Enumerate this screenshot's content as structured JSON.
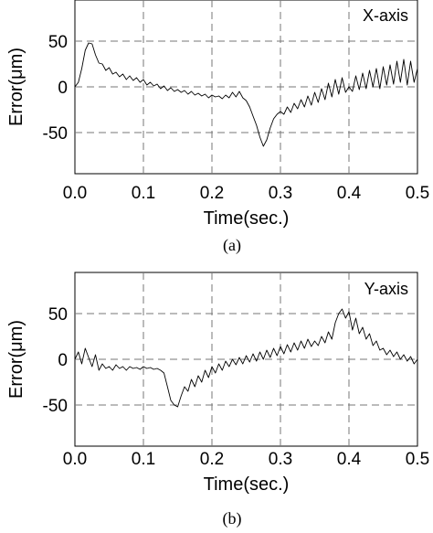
{
  "chart_data": [
    {
      "type": "line",
      "panel_label": "X-axis",
      "caption": "(a)",
      "xlabel": "Time(sec.)",
      "ylabel": "Error(μm)",
      "xlim": [
        0,
        0.5
      ],
      "ylim": [
        -95,
        95
      ],
      "xticks": [
        "0.0",
        "0.1",
        "0.2",
        "0.3",
        "0.4",
        "0.5"
      ],
      "yticks": [
        "50",
        "0",
        "-50"
      ],
      "grid": true,
      "series": [
        {
          "x": [
            0.0,
            0.005,
            0.01,
            0.015,
            0.02,
            0.025,
            0.03,
            0.035,
            0.04,
            0.045,
            0.05,
            0.055,
            0.06,
            0.065,
            0.07,
            0.075,
            0.08,
            0.085,
            0.09,
            0.095,
            0.1,
            0.105,
            0.11,
            0.115,
            0.12,
            0.125,
            0.13,
            0.135,
            0.14,
            0.145,
            0.15,
            0.155,
            0.16,
            0.165,
            0.17,
            0.175,
            0.18,
            0.185,
            0.19,
            0.195,
            0.2,
            0.205,
            0.21,
            0.215,
            0.22,
            0.225,
            0.23,
            0.235,
            0.24,
            0.245,
            0.25,
            0.255,
            0.26,
            0.265,
            0.27,
            0.275,
            0.28,
            0.285,
            0.29,
            0.295,
            0.3,
            0.305,
            0.31,
            0.315,
            0.32,
            0.325,
            0.33,
            0.335,
            0.34,
            0.345,
            0.35,
            0.355,
            0.36,
            0.365,
            0.37,
            0.375,
            0.38,
            0.385,
            0.39,
            0.395,
            0.4,
            0.405,
            0.41,
            0.415,
            0.42,
            0.425,
            0.43,
            0.435,
            0.44,
            0.445,
            0.45,
            0.455,
            0.46,
            0.465,
            0.47,
            0.475,
            0.48,
            0.485,
            0.49,
            0.495,
            0.5
          ],
          "y": [
            0,
            5,
            20,
            40,
            48,
            47,
            35,
            26,
            25,
            18,
            21,
            14,
            16,
            11,
            14,
            8,
            12,
            7,
            10,
            5,
            8,
            2,
            5,
            1,
            3,
            -2,
            1,
            -4,
            -1,
            -5,
            -3,
            -6,
            -4,
            -8,
            -5,
            -9,
            -7,
            -10,
            -8,
            -12,
            -9,
            -11,
            -10,
            -13,
            -9,
            -12,
            -6,
            -11,
            -5,
            -12,
            -15,
            -22,
            -32,
            -42,
            -55,
            -65,
            -58,
            -45,
            -35,
            -30,
            -27,
            -30,
            -22,
            -28,
            -18,
            -24,
            -14,
            -22,
            -10,
            -20,
            -6,
            -17,
            -2,
            -14,
            4,
            -11,
            8,
            -8,
            10,
            -6,
            0,
            -5,
            12,
            -3,
            15,
            -2,
            18,
            0,
            20,
            -2,
            22,
            2,
            24,
            3,
            28,
            5,
            30,
            2,
            28,
            5,
            20
          ]
        }
      ]
    },
    {
      "type": "line",
      "panel_label": "Y-axis",
      "caption": "(b)",
      "xlabel": "Time(sec.)",
      "ylabel": "Error(μm)",
      "xlim": [
        0,
        0.5
      ],
      "ylim": [
        -95,
        95
      ],
      "xticks": [
        "0.0",
        "0.1",
        "0.2",
        "0.3",
        "0.4",
        "0.5"
      ],
      "yticks": [
        "50",
        "0",
        "-50"
      ],
      "grid": true,
      "series": [
        {
          "x": [
            0.0,
            0.005,
            0.01,
            0.015,
            0.02,
            0.025,
            0.03,
            0.035,
            0.04,
            0.045,
            0.05,
            0.055,
            0.06,
            0.065,
            0.07,
            0.075,
            0.08,
            0.085,
            0.09,
            0.095,
            0.1,
            0.105,
            0.11,
            0.115,
            0.12,
            0.125,
            0.13,
            0.135,
            0.14,
            0.145,
            0.15,
            0.155,
            0.16,
            0.165,
            0.17,
            0.175,
            0.18,
            0.185,
            0.19,
            0.195,
            0.2,
            0.205,
            0.21,
            0.215,
            0.22,
            0.225,
            0.23,
            0.235,
            0.24,
            0.245,
            0.25,
            0.255,
            0.26,
            0.265,
            0.27,
            0.275,
            0.28,
            0.285,
            0.29,
            0.295,
            0.3,
            0.305,
            0.31,
            0.315,
            0.32,
            0.325,
            0.33,
            0.335,
            0.34,
            0.345,
            0.35,
            0.355,
            0.36,
            0.365,
            0.37,
            0.375,
            0.38,
            0.385,
            0.39,
            0.395,
            0.4,
            0.405,
            0.41,
            0.415,
            0.42,
            0.425,
            0.43,
            0.435,
            0.44,
            0.445,
            0.45,
            0.455,
            0.46,
            0.465,
            0.47,
            0.475,
            0.48,
            0.485,
            0.49,
            0.495,
            0.5
          ],
          "y": [
            0,
            8,
            -5,
            12,
            2,
            -8,
            5,
            -12,
            -5,
            -10,
            -8,
            -12,
            -6,
            -10,
            -8,
            -12,
            -8,
            -10,
            -9,
            -11,
            -8,
            -10,
            -9,
            -11,
            -10,
            -12,
            -15,
            -30,
            -45,
            -50,
            -52,
            -40,
            -30,
            -35,
            -22,
            -30,
            -18,
            -25,
            -12,
            -20,
            -8,
            -15,
            -5,
            -12,
            -2,
            -8,
            0,
            -6,
            2,
            -5,
            4,
            -3,
            6,
            -2,
            8,
            0,
            10,
            2,
            12,
            4,
            14,
            6,
            16,
            8,
            18,
            10,
            20,
            12,
            22,
            14,
            20,
            15,
            25,
            18,
            30,
            22,
            40,
            50,
            55,
            45,
            52,
            32,
            45,
            28,
            35,
            22,
            28,
            15,
            20,
            10,
            12,
            5,
            10,
            3,
            8,
            0,
            5,
            -2,
            3,
            -5,
            0
          ]
        }
      ]
    }
  ]
}
